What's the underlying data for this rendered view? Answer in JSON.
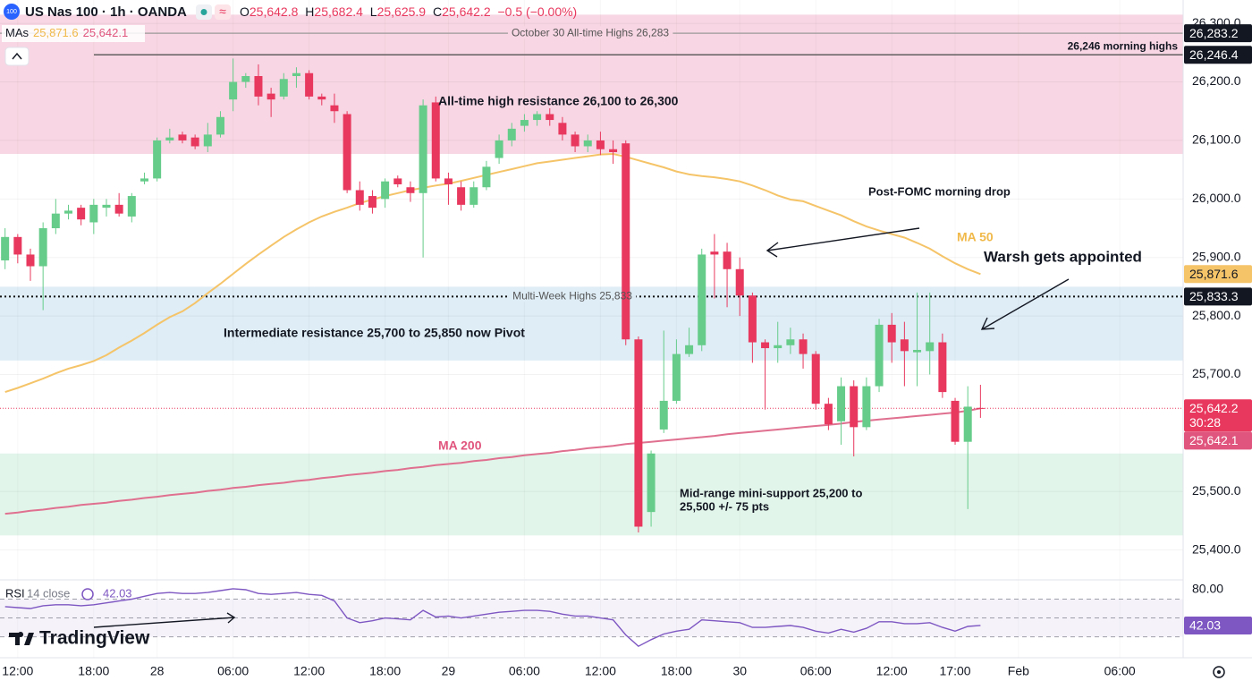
{
  "header": {
    "symbol_badge": "100",
    "title": "US Nas 100 · 1h · OANDA",
    "ohlc": [
      {
        "label": "O",
        "value": "25,642.8"
      },
      {
        "label": "H",
        "value": "25,682.4"
      },
      {
        "label": "L",
        "value": "25,625.9"
      },
      {
        "label": "C",
        "value": "25,642.2"
      }
    ],
    "change": "−0.5 (−0.00%)",
    "mas_label": "MAs",
    "mas_values": [
      "25,871.6",
      "25,642.1"
    ],
    "brand": "TradingView"
  },
  "chart_data": [
    {
      "type": "candlestick",
      "up_color": "#66cc8a",
      "down_color": "#e8385e",
      "grid": true,
      "xlim": [
        -0.4,
        93
      ],
      "xticks": [
        {
          "value": 1,
          "label": "12:00"
        },
        {
          "value": 7,
          "label": "18:00"
        },
        {
          "value": 12,
          "label": "28"
        },
        {
          "value": 18,
          "label": "06:00"
        },
        {
          "value": 24,
          "label": "12:00"
        },
        {
          "value": 30,
          "label": "18:00"
        },
        {
          "value": 35,
          "label": "29"
        },
        {
          "value": 41,
          "label": "06:00"
        },
        {
          "value": 47,
          "label": "12:00"
        },
        {
          "value": 53,
          "label": "18:00"
        },
        {
          "value": 58,
          "label": "30"
        },
        {
          "value": 64,
          "label": "06:00"
        },
        {
          "value": 70,
          "label": "12:00"
        },
        {
          "value": 75,
          "label": "17:00"
        },
        {
          "value": 80,
          "label": "Feb"
        },
        {
          "value": 88,
          "label": "06:00"
        }
      ],
      "ylim": [
        25349,
        26340
      ],
      "yticks": [
        {
          "value": 26300,
          "label": "26,300.0"
        },
        {
          "value": 26200,
          "label": "26,200.0"
        },
        {
          "value": 26100,
          "label": "26,100.0"
        },
        {
          "value": 26000,
          "label": "26,000.0"
        },
        {
          "value": 25900,
          "label": "25,900.0"
        },
        {
          "value": 25800,
          "label": "25,800.0"
        },
        {
          "value": 25700,
          "label": "25,700.0"
        },
        {
          "value": 25500,
          "label": "25,500.0"
        },
        {
          "value": 25400,
          "label": "25,400.0"
        }
      ],
      "open": [
        25895,
        25935,
        25905,
        25885,
        25950,
        25975,
        25985,
        25960,
        25985,
        25990,
        25970,
        26030,
        26035,
        26100,
        26110,
        26105,
        26090,
        26110,
        26170,
        26200,
        26210,
        26180,
        26175,
        26210,
        26215,
        26175,
        26160,
        26145,
        26015,
        26005,
        26000,
        26035,
        26020,
        26010,
        26165,
        26035,
        26020,
        25990,
        26020,
        26070,
        26100,
        26125,
        26135,
        26145,
        26130,
        26110,
        26090,
        26100,
        26085,
        26095,
        25760,
        25465,
        25606,
        25655,
        25735,
        25750,
        25910,
        25910,
        25880,
        25835,
        25755,
        25745,
        25750,
        25760,
        25735,
        25650,
        25620,
        25680,
        25610,
        25680,
        25785,
        25760,
        25738,
        25740,
        25755,
        25655,
        25585,
        25642.8
      ],
      "high": [
        25950,
        25940,
        25915,
        25960,
        26000,
        25990,
        25990,
        26000,
        26000,
        26010,
        26010,
        26045,
        26105,
        26120,
        26115,
        26110,
        26130,
        26150,
        26240,
        26215,
        26230,
        26190,
        26215,
        26225,
        26220,
        26180,
        26180,
        26150,
        26030,
        26015,
        26035,
        26040,
        26030,
        26170,
        26175,
        26045,
        26030,
        26030,
        26065,
        26110,
        26130,
        26145,
        26150,
        26155,
        26140,
        26115,
        26110,
        26115,
        26100,
        26100,
        25765,
        25570,
        25775,
        25760,
        25780,
        25915,
        25940,
        25925,
        25900,
        25840,
        25760,
        25790,
        25780,
        25770,
        25740,
        25660,
        25695,
        25690,
        25695,
        25795,
        25805,
        25790,
        25840,
        25840,
        25770,
        25660,
        25680,
        25682.4
      ],
      "low": [
        25880,
        25890,
        25860,
        25810,
        25940,
        25965,
        25955,
        25940,
        25970,
        25970,
        25960,
        26025,
        26030,
        26095,
        26095,
        26085,
        26080,
        26105,
        26150,
        26190,
        26160,
        26140,
        26170,
        26190,
        26170,
        26160,
        26130,
        26010,
        25980,
        25975,
        25985,
        26020,
        25995,
        25900,
        26030,
        25990,
        25980,
        25985,
        26015,
        26060,
        26090,
        26115,
        26125,
        26125,
        26100,
        26080,
        26080,
        26075,
        26060,
        25750,
        25430,
        25440,
        25600,
        25650,
        25730,
        25740,
        25830,
        25815,
        25800,
        25720,
        25640,
        25720,
        25735,
        25710,
        25640,
        25605,
        25580,
        25560,
        25605,
        25670,
        25720,
        25680,
        25680,
        25700,
        25660,
        25580,
        25470,
        25625.9
      ],
      "close": [
        25935,
        25905,
        25885,
        25950,
        25975,
        25980,
        25965,
        25990,
        25990,
        25975,
        26005,
        26035,
        26100,
        26105,
        26100,
        26090,
        26110,
        26140,
        26200,
        26210,
        26175,
        26170,
        26205,
        26215,
        26175,
        26170,
        26150,
        26015,
        25990,
        25985,
        26030,
        26025,
        26010,
        26160,
        26035,
        26025,
        25990,
        26020,
        26055,
        26100,
        26120,
        26135,
        26145,
        26135,
        26110,
        26090,
        26100,
        26085,
        26080,
        25760,
        25440,
        25565,
        25655,
        25735,
        25750,
        25905,
        25905,
        25880,
        25835,
        25755,
        25745,
        25750,
        25760,
        25735,
        25650,
        25615,
        25680,
        25610,
        25680,
        25785,
        25755,
        25740,
        25742,
        25755,
        25670,
        25585,
        25645,
        25642.2
      ],
      "series": [
        {
          "color": "#f5c469",
          "values": [
            25670,
            25677,
            25685,
            25693,
            25702,
            25710,
            25716,
            25723,
            25733,
            25746,
            25758,
            25771,
            25785,
            25798,
            25808,
            25822,
            25839,
            25855,
            25872,
            25889,
            25905,
            25920,
            25935,
            25948,
            25960,
            25970,
            25978,
            25985,
            25993,
            25999,
            26005,
            26010,
            26015,
            26019,
            26023,
            26026,
            26031,
            26036,
            26041,
            26046,
            26051,
            26056,
            26061,
            26064,
            26067,
            26070,
            26073,
            26076,
            26077,
            26072,
            26066,
            26060,
            26054,
            26047,
            26042,
            26039,
            26037,
            26034,
            26030,
            26023,
            26015,
            26006,
            25999,
            25996,
            25988,
            25980,
            25972,
            25962,
            25953,
            25946,
            25940,
            25934,
            25925,
            25915,
            25902,
            25890,
            25880,
            25871.6
          ]
        },
        {
          "color": "#e0708f",
          "values": [
            25462,
            25464,
            25467,
            25469,
            25472,
            25474,
            25477,
            25479,
            25481,
            25484,
            25486,
            25489,
            25491,
            25494,
            25496,
            25498,
            25501,
            25503,
            25506,
            25508,
            25511,
            25513,
            25515,
            25518,
            25520,
            25523,
            25525,
            25528,
            25530,
            25532,
            25535,
            25537,
            25540,
            25542,
            25545,
            25547,
            25549,
            25552,
            25554,
            25557,
            25559,
            25562,
            25564,
            25566,
            25569,
            25571,
            25574,
            25576,
            25578,
            25581,
            25583,
            25585,
            25587,
            25589,
            25591,
            25593,
            25595,
            25598,
            25600,
            25602,
            25604,
            25606,
            25608,
            25610,
            25612,
            25614,
            25616,
            25619,
            25621,
            25623,
            25625,
            25627,
            25629,
            25631,
            25633,
            25635,
            25638,
            25642.1
          ]
        }
      ],
      "zones": [
        {
          "from": 26077,
          "to": 26315,
          "color": "#f8d6e3"
        },
        {
          "from": 25724,
          "to": 25850,
          "color": "#deedf6"
        },
        {
          "from": 25425,
          "to": 25565,
          "color": "#e2f5ea"
        }
      ],
      "hlines": [
        {
          "label": "October 30 All-time Highs 26,283",
          "value": 26283.2,
          "value_label": "26,283.2",
          "color": "#9a9a9a"
        },
        {
          "label": "26,246 morning highs",
          "value": 26246.4,
          "value_label": "26,246.4",
          "color": "#555555"
        },
        {
          "label": "Multi-Week Highs 25,833",
          "value": 25833.3,
          "value_label": "25,833.3",
          "color": "#111111"
        }
      ],
      "price_tags": [
        {
          "value": 25871.6,
          "value_label": "25,871.6",
          "color": "#f5c469",
          "text_color": "#131722"
        },
        {
          "value": 25642.2,
          "value_label": "25,642.2",
          "color": "#e8385e",
          "text_color": "#ffffff",
          "countdown": "30:28"
        },
        {
          "value": 25642.1,
          "value_label": "25,642.1",
          "color": "#e0557d",
          "text_color": "#ffffff"
        }
      ],
      "annotations": [
        {
          "text": "All-time high resistance 26,100 to 26,300",
          "color": "#131722"
        },
        {
          "text": "Post-FOMC morning drop",
          "color": "#131722"
        },
        {
          "text": "MA 50",
          "color": "#f0b94a"
        },
        {
          "text": "Warsh gets appointed",
          "color": "#131722"
        },
        {
          "text": "Intermediate resistance 25,700 to 25,850 now Pivot",
          "color": "#131722"
        },
        {
          "text": "MA 200",
          "color": "#e0557d"
        },
        {
          "text": "Mid-range mini-support 25,200 to",
          "color": "#131722"
        },
        {
          "text": "25,500 +/- 75 pts",
          "color": "#131722"
        }
      ]
    },
    {
      "type": "line",
      "name": "RSI",
      "params": [
        "14",
        "close"
      ],
      "last_label": "42.03",
      "color": "#7e57c2",
      "ylim": [
        7.8,
        90.4
      ],
      "yticks": [
        {
          "value": 80,
          "label": "80.00"
        }
      ],
      "levels": [
        70,
        50,
        30
      ],
      "values": [
        62,
        61,
        60,
        63,
        64,
        64,
        63,
        64,
        66,
        68,
        70,
        73,
        76,
        77,
        76,
        76,
        77,
        79,
        81,
        80,
        76,
        75,
        76,
        77,
        75,
        74,
        68,
        50,
        45,
        47,
        50,
        49,
        48,
        58,
        51,
        52,
        50,
        52,
        54,
        56,
        57,
        58,
        58,
        57,
        54,
        52,
        52,
        50,
        48,
        32,
        20,
        27,
        33,
        36,
        38,
        48,
        47,
        46,
        45,
        40,
        40,
        41,
        42,
        40,
        36,
        34,
        38,
        35,
        39,
        46,
        46,
        44,
        44,
        45,
        40,
        36,
        41,
        42.03
      ]
    }
  ]
}
